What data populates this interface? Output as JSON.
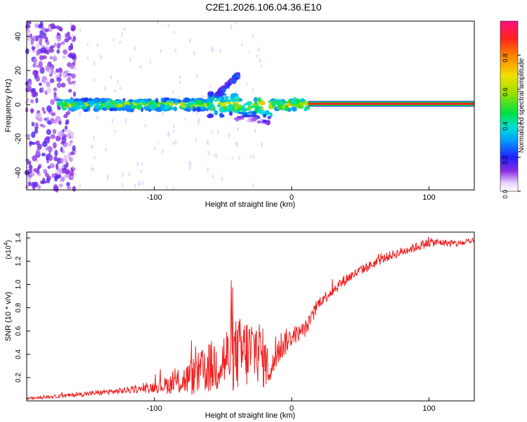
{
  "figure": {
    "title": "C2E1.2026.106.04.36.E10"
  },
  "chart_data": [
    {
      "type": "heatmap",
      "name": "spectrogram",
      "xlabel": "Height of straight line (km)",
      "ylabel": "Frequency (Hz)",
      "xlim": [
        -193,
        133
      ],
      "ylim": [
        -50,
        49
      ],
      "xticks": [
        -100,
        0,
        100
      ],
      "yticks": [
        -40,
        -20,
        0,
        20,
        40
      ],
      "colorbar": {
        "label": "Normalized spectral amplitude",
        "range": [
          0,
          1
        ],
        "ticks": [
          "0.0",
          "0.2",
          "0.4",
          "0.6",
          "0.8"
        ]
      },
      "features": [
        {
          "desc": "stable carrier line",
          "x_range": [
            12,
            133
          ],
          "freq": 0.5,
          "amplitude": 0.95
        },
        {
          "desc": "noisy carrier band",
          "x_range": [
            -170,
            12
          ],
          "freq": 0,
          "amplitude": 0.3
        },
        {
          "desc": "secondary branch",
          "x_range": [
            -55,
            -40
          ],
          "freq_range": [
            5,
            18
          ],
          "amplitude": 0.2
        },
        {
          "desc": "broadband noise",
          "x_range": [
            -193,
            -160
          ],
          "freq_range": [
            -50,
            49
          ],
          "amplitude": 0.15
        }
      ]
    },
    {
      "type": "line",
      "name": "snr",
      "xlabel": "Height of straight line (km)",
      "ylabel": "SNR (10 * v/v)",
      "scale_label": "(x10",
      "scale_exp": "4",
      "xlim": [
        -193,
        133
      ],
      "ylim": [
        0,
        1.45
      ],
      "xticks": [
        -100,
        0,
        100
      ],
      "yticks": [
        "0.2",
        "0.4",
        "0.6",
        "0.8",
        "1.0",
        "1.2",
        "1.4"
      ],
      "series": [
        {
          "name": "SNR",
          "color": "#ee2222",
          "x": [
            -193,
            -170,
            -150,
            -130,
            -110,
            -100,
            -90,
            -80,
            -70,
            -60,
            -50,
            -40,
            -30,
            -25,
            -20,
            -15,
            -10,
            -5,
            0,
            5,
            10,
            15,
            20,
            30,
            40,
            50,
            60,
            70,
            80,
            90,
            100,
            110,
            120,
            133
          ],
          "y": [
            0.02,
            0.04,
            0.06,
            0.08,
            0.1,
            0.12,
            0.14,
            0.17,
            0.22,
            0.28,
            0.35,
            0.4,
            0.42,
            0.45,
            0.35,
            0.25,
            0.45,
            0.5,
            0.55,
            0.58,
            0.62,
            0.72,
            0.85,
            0.95,
            1.05,
            1.12,
            1.18,
            1.24,
            1.28,
            1.32,
            1.36,
            1.36,
            1.35,
            1.37
          ],
          "noise": [
            0.01,
            0.015,
            0.02,
            0.025,
            0.03,
            0.05,
            0.08,
            0.12,
            0.18,
            0.22,
            0.28,
            0.32,
            0.32,
            0.3,
            0.25,
            0.1,
            0.15,
            0.12,
            0.08,
            0.07,
            0.07,
            0.06,
            0.05,
            0.05,
            0.05,
            0.04,
            0.04,
            0.04,
            0.04,
            0.04,
            0.04,
            0.03,
            0.03,
            0.03
          ]
        }
      ]
    }
  ]
}
